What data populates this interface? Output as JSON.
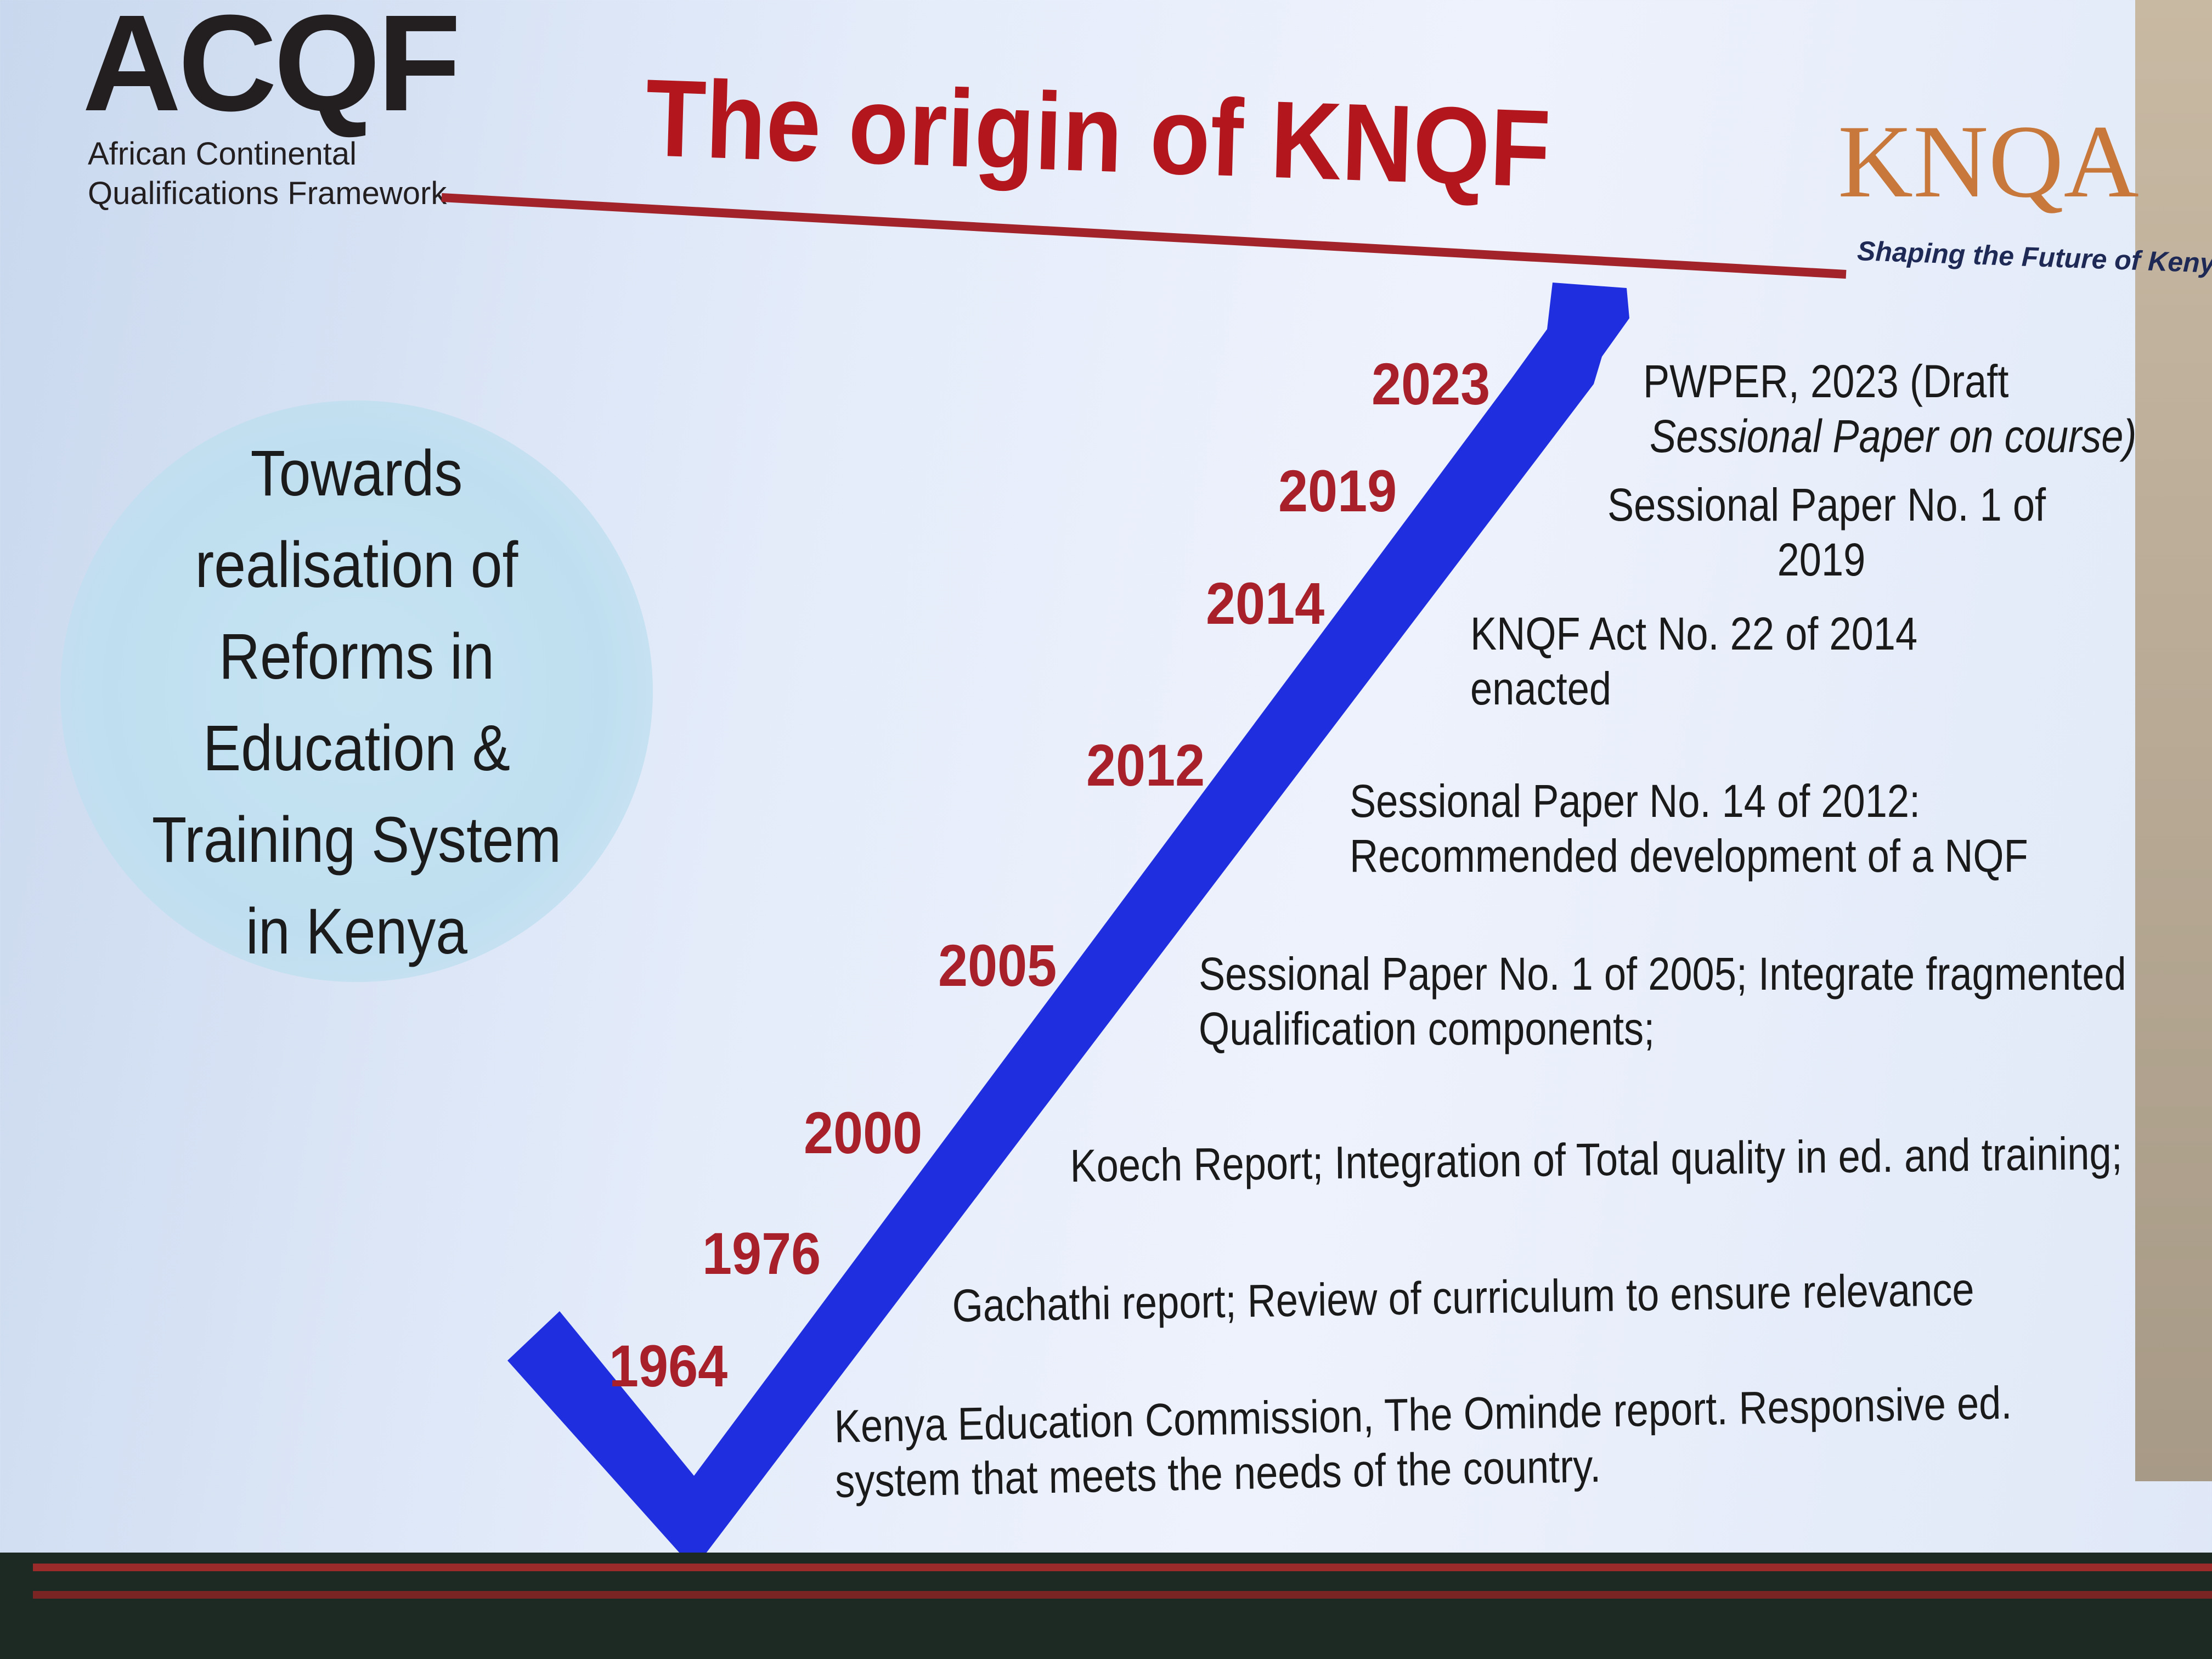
{
  "acqf_logo": {
    "mark": "ACQF",
    "line1": "African Continental",
    "line2": "Qualifications Framework"
  },
  "title": "The origin of KNQF",
  "knqa_logo": {
    "mark": "KNQA",
    "tagline": "Shaping the Future of Kenya"
  },
  "side_panel": {
    "lines": [
      "Towards",
      "realisation  of",
      "Reforms in",
      "Education &",
      "Training System",
      "in Kenya"
    ]
  },
  "colors": {
    "title": "#b3161c",
    "arrow": "#1f2fe0",
    "years": "#a8202a",
    "circle": "#bfdff0"
  },
  "timeline": [
    {
      "year": "2023",
      "lines": [
        "PWPER, 2023 (Draft",
        "Sessional Paper on course)"
      ]
    },
    {
      "year": "2019",
      "lines": [
        "Sessional Paper No. 1 of",
        "2019"
      ]
    },
    {
      "year": "2014",
      "lines": [
        "KNQF Act No. 22 of 2014",
        "enacted"
      ]
    },
    {
      "year": "2012",
      "lines": [
        "Sessional Paper No. 14 of 2012:",
        "Recommended development of a NQF"
      ]
    },
    {
      "year": "2005",
      "lines": [
        "Sessional Paper No. 1 of 2005; Integrate fragmented",
        "Qualification components;"
      ]
    },
    {
      "year": "2000",
      "lines": [
        "Koech Report; Integration of Total quality in ed. and training;"
      ]
    },
    {
      "year": "1976",
      "lines": [
        "Gachathi report; Review of curriculum to ensure relevance"
      ]
    },
    {
      "year": "1964",
      "lines": [
        "Kenya Education Commission, The Ominde report. Responsive ed.",
        "system that meets the needs of the country."
      ]
    }
  ]
}
